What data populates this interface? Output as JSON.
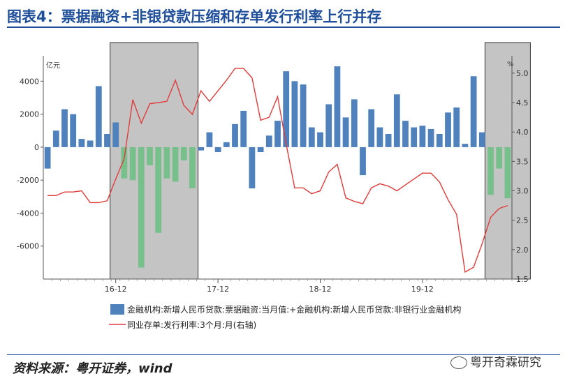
{
  "page_title": "图表4：票据融资+非银贷款压缩和存单发行利率上行并存",
  "source": "资料来源：粤开证券，wind",
  "watermark": "粤开奇霖研究",
  "chart_data": {
    "type": "bar+line",
    "left_unit": "亿元",
    "right_unit": "%",
    "x_ticks": [
      "16-12",
      "17-12",
      "18-12",
      "19-12"
    ],
    "ylim_left": [
      -8000,
      5200
    ],
    "yticks_left": [
      4000,
      2000,
      0,
      -2000,
      -4000,
      -6000
    ],
    "ylim_right": [
      1.5,
      5.2
    ],
    "yticks_right": [
      5.0,
      4.5,
      4.0,
      3.5,
      3.0,
      2.5,
      2.0,
      1.5
    ],
    "shaded_spans": [
      [
        8,
        17
      ],
      [
        52,
        56
      ]
    ],
    "series": [
      {
        "name": "金融机构:新增人民币贷款:票据融资:当月值:+金融机构:新增人民币贷款:非银行业金融机构",
        "axis": "left",
        "color": "#4f81bd",
        "neg_color_in_shade": "#77c08b",
        "values": [
          -1300,
          1000,
          2300,
          2000,
          500,
          400,
          3700,
          800,
          1500,
          -1900,
          -2000,
          -7300,
          -1100,
          -5200,
          -1900,
          -2100,
          -800,
          -2500,
          -200,
          900,
          -300,
          300,
          1400,
          2200,
          -2500,
          -300,
          700,
          1600,
          4600,
          4000,
          3800,
          1200,
          900,
          2600,
          4900,
          1800,
          2900,
          -1700,
          2300,
          1200,
          800,
          3200,
          1600,
          1200,
          1300,
          1100,
          800,
          2100,
          2400,
          200,
          4300,
          900,
          -2900,
          -1300,
          -3100
        ]
      },
      {
        "name": "同业存单:发行利率:3个月:月(右轴)",
        "axis": "right",
        "color": "#e03c3c",
        "values": [
          2.92,
          2.92,
          2.98,
          2.98,
          3.0,
          2.8,
          2.8,
          2.83,
          3.2,
          3.55,
          4.55,
          4.15,
          4.48,
          4.5,
          4.52,
          4.88,
          4.45,
          4.3,
          4.7,
          4.52,
          4.7,
          4.88,
          5.08,
          5.08,
          4.92,
          4.2,
          4.25,
          4.6,
          3.8,
          3.05,
          3.05,
          2.95,
          3.0,
          3.32,
          3.45,
          2.88,
          2.82,
          2.78,
          3.05,
          3.12,
          3.08,
          3.0,
          3.1,
          3.2,
          3.3,
          3.3,
          3.15,
          2.85,
          2.6,
          1.62,
          1.7,
          2.1,
          2.55,
          2.7,
          2.75
        ]
      }
    ]
  }
}
